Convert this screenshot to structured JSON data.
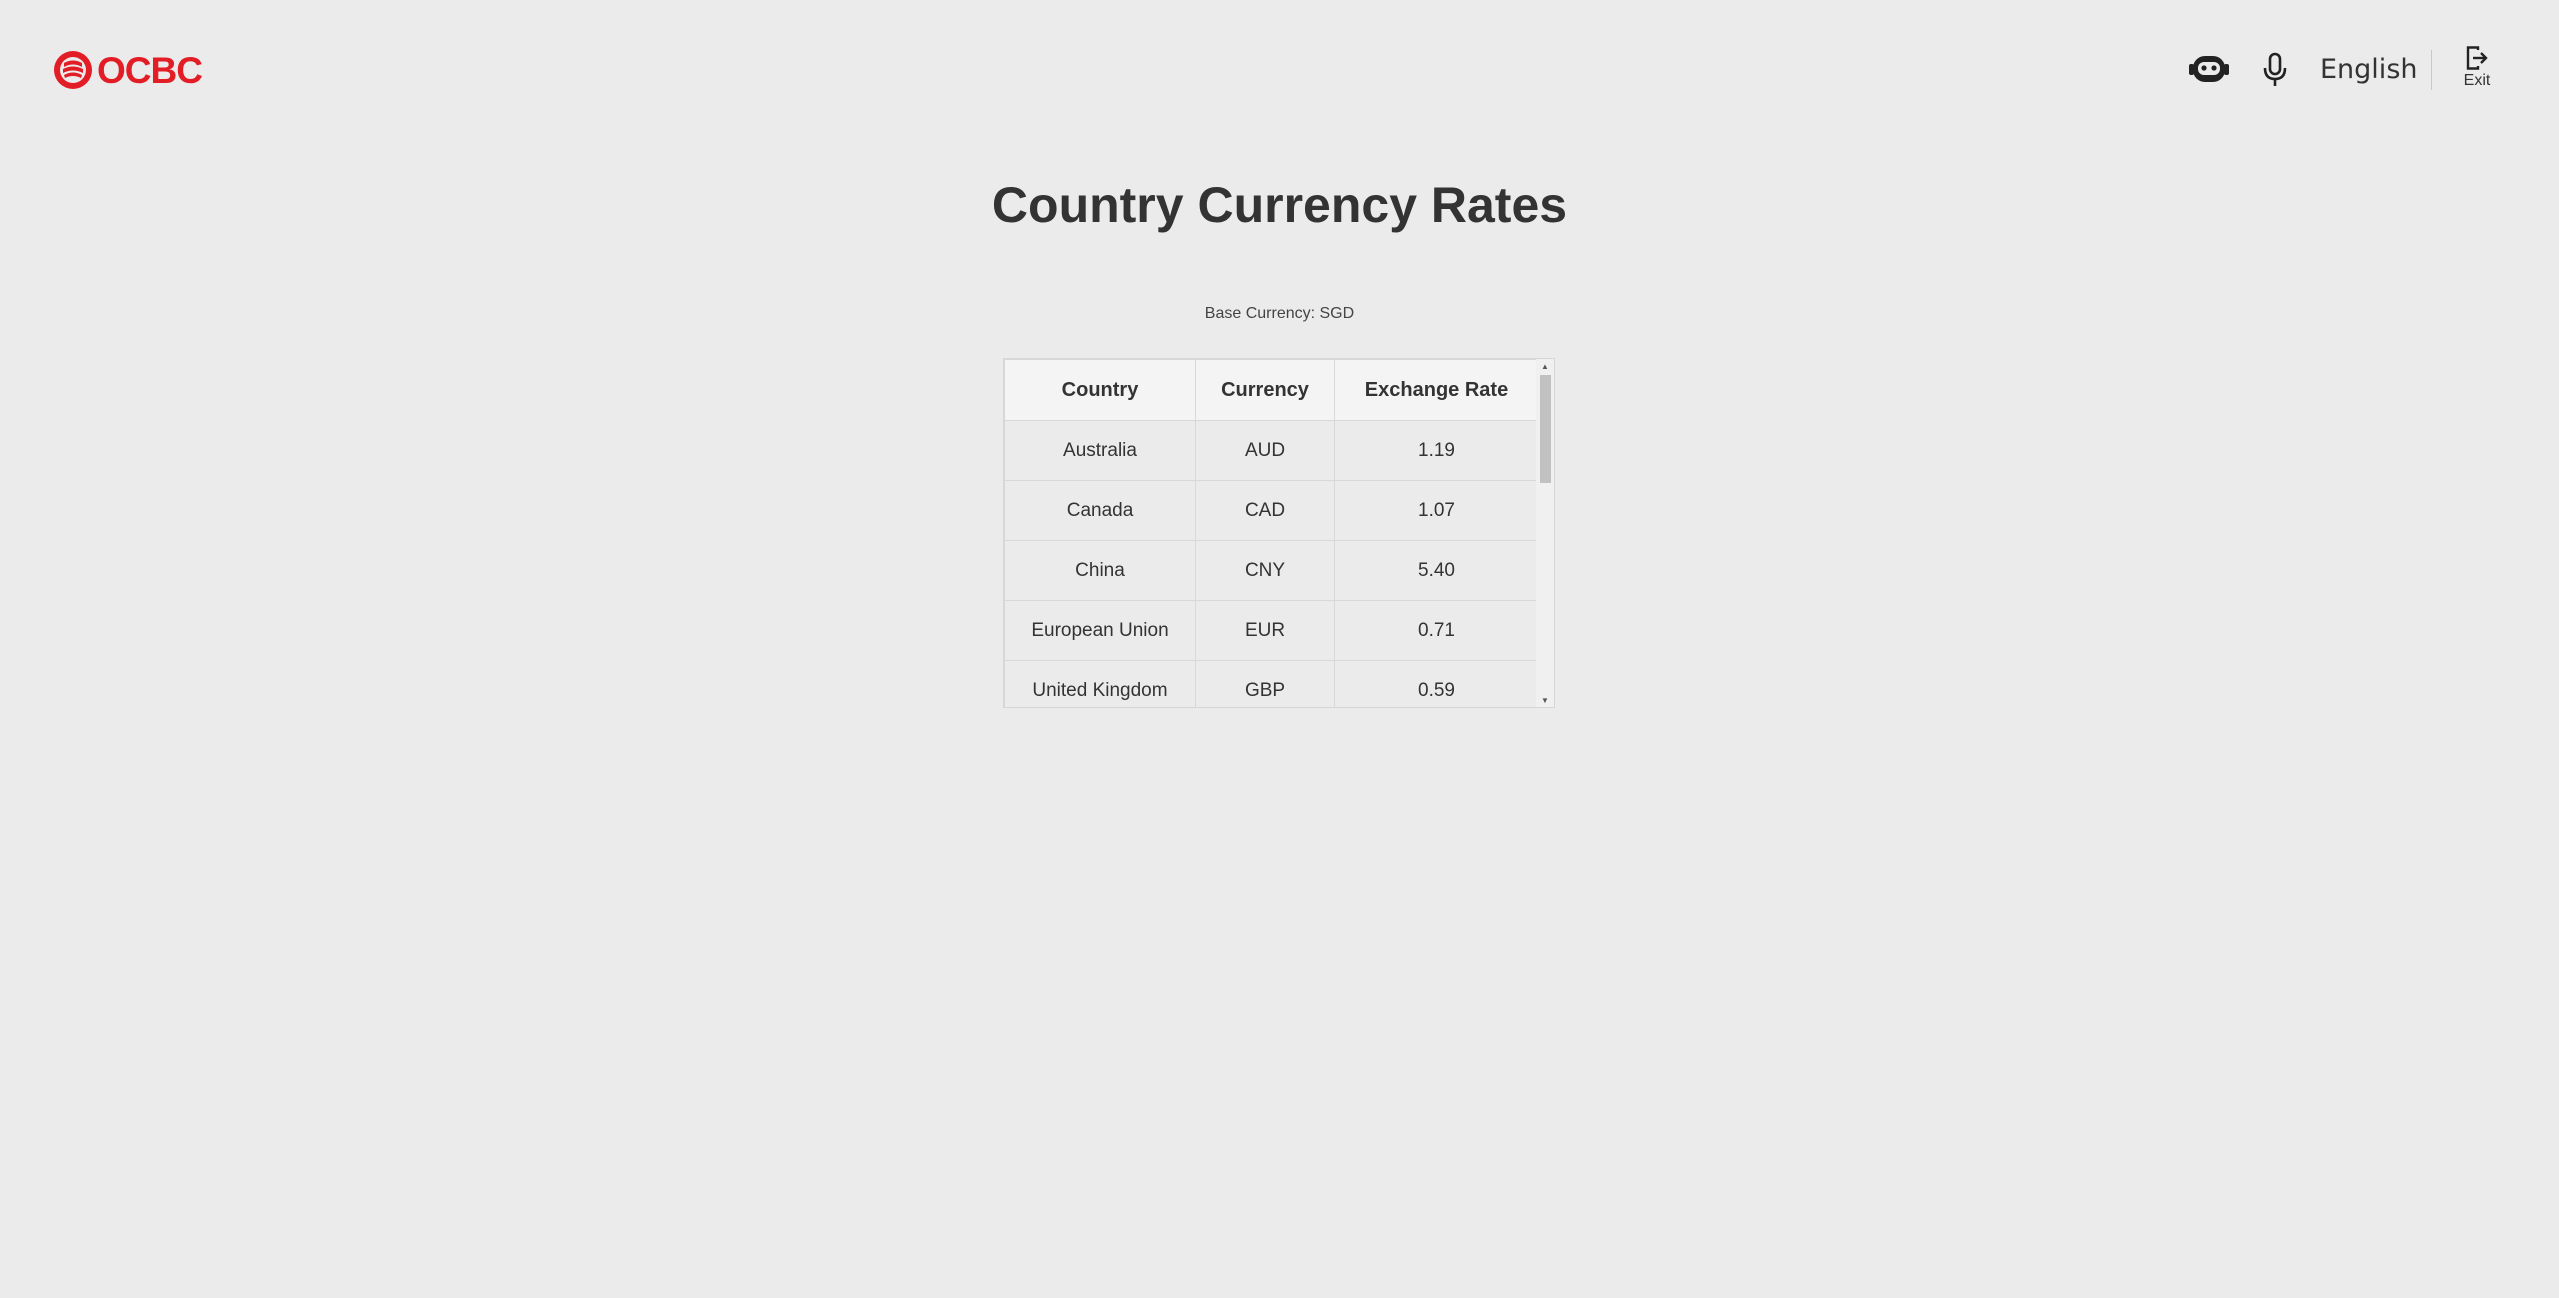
{
  "header": {
    "logo_text": "OCBC",
    "language": "English",
    "exit_label": "Exit",
    "brand_color": "#e31d25",
    "icons": [
      "chatbot-icon",
      "microphone-icon",
      "exit-icon"
    ]
  },
  "page": {
    "title": "Country Currency Rates",
    "subtitle": "Base Currency: SGD"
  },
  "table": {
    "headers": {
      "country": "Country",
      "currency": "Currency",
      "rate": "Exchange Rate"
    },
    "rows": [
      {
        "country": "Australia",
        "currency": "AUD",
        "rate": "1.19"
      },
      {
        "country": "Canada",
        "currency": "CAD",
        "rate": "1.07"
      },
      {
        "country": "China",
        "currency": "CNY",
        "rate": "5.40"
      },
      {
        "country": "European Union",
        "currency": "EUR",
        "rate": "0.71"
      },
      {
        "country": "United Kingdom",
        "currency": "GBP",
        "rate": "0.59"
      }
    ]
  }
}
